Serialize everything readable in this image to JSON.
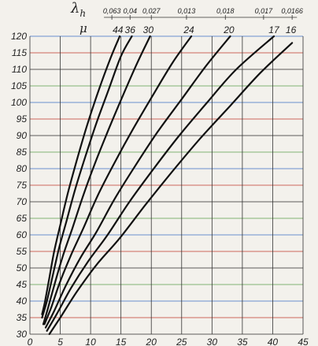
{
  "chart_data": {
    "type": "line",
    "title": "",
    "xlabel": "",
    "ylabel": "",
    "xlim": [
      0,
      45
    ],
    "ylim": [
      30,
      120
    ],
    "x_ticks": [
      "0",
      "5",
      "10",
      "15",
      "20",
      "25",
      "30",
      "35",
      "40",
      "45"
    ],
    "y_ticks": [
      "30",
      "35",
      "40",
      "45",
      "50",
      "55",
      "60",
      "65",
      "70",
      "75",
      "80",
      "85",
      "90",
      "95",
      "100",
      "105",
      "110",
      "115",
      "120"
    ],
    "grid": true,
    "top_axis": {
      "mu_label": "μ",
      "lambda_label": "λ",
      "lambda_subscript": "h",
      "mu_values": [
        "44",
        "36",
        "30",
        "24",
        "20",
        "17",
        "16"
      ],
      "lambda_values": [
        "0,063",
        "0,04",
        "0,027",
        "0,013",
        "0,018",
        "0,017",
        "0,0166"
      ],
      "mu_positions": [
        14.5,
        16.5,
        19.5,
        26.2,
        32.8,
        40.2,
        43.0
      ],
      "lambda_positions": [
        13.5,
        16.5,
        20.0,
        25.8,
        32.2,
        38.5,
        43.2
      ]
    },
    "series": [
      {
        "x": [
          2.0,
          2.5,
          3.2,
          4.0,
          5.0,
          6.3,
          7.8,
          9.4,
          11.2,
          13.2,
          14.8
        ],
        "y": [
          36,
          40,
          47,
          55,
          63,
          73,
          83,
          93,
          103,
          113,
          120
        ]
      },
      {
        "x": [
          2.0,
          2.8,
          3.8,
          4.8,
          6.0,
          7.5,
          9.2,
          11.0,
          13.0,
          15.0,
          16.8
        ],
        "y": [
          35,
          40,
          48,
          56,
          64,
          74,
          84,
          94,
          104,
          114,
          120
        ]
      },
      {
        "x": [
          2.2,
          3.0,
          4.2,
          5.5,
          7.0,
          8.8,
          10.8,
          13.0,
          15.3,
          17.7,
          19.8
        ],
        "y": [
          33,
          38,
          46,
          54,
          62,
          72,
          82,
          92,
          102,
          112,
          120
        ]
      },
      {
        "x": [
          2.4,
          3.5,
          5.0,
          6.8,
          8.8,
          11.2,
          14.0,
          17.0,
          20.2,
          23.5,
          26.6
        ],
        "y": [
          33,
          38,
          46,
          54,
          62,
          72,
          82,
          92,
          102,
          112,
          120
        ]
      },
      {
        "x": [
          2.6,
          4.0,
          6.0,
          8.3,
          11.0,
          14.0,
          17.4,
          21.0,
          25.0,
          29.0,
          33.0
        ],
        "y": [
          32,
          37,
          45,
          53,
          61,
          71,
          81,
          91,
          101,
          111,
          120
        ]
      },
      {
        "x": [
          2.8,
          4.4,
          6.8,
          9.6,
          12.8,
          16.4,
          20.4,
          24.6,
          29.2,
          34.0,
          40.2
        ],
        "y": [
          31,
          36,
          44,
          52,
          60,
          70,
          80,
          90,
          100,
          110,
          120
        ]
      },
      {
        "x": [
          3.2,
          5.0,
          7.8,
          11.0,
          14.8,
          19.0,
          23.4,
          28.0,
          33.0,
          38.0,
          43.2
        ],
        "y": [
          30,
          35,
          43,
          51,
          59,
          69,
          79,
          89,
          99,
          109,
          118
        ]
      }
    ],
    "colors": {
      "curve": "#111111",
      "grid_vertical": "#333333",
      "grid_horizontal": [
        "#2a2a2a",
        "#c0392b",
        "#3a6fc4",
        "#5a9e4b"
      ],
      "background": "#f3f1ec"
    }
  }
}
